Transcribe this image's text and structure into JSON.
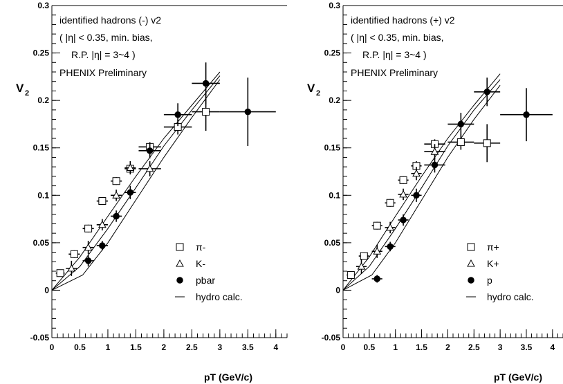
{
  "chart_data": [
    {
      "type": "scatter",
      "xlabel": "pT (GeV/c)",
      "ylabel": "V",
      "ylabel_sub": "2",
      "xlim": [
        0,
        4.2
      ],
      "ylim": [
        -0.05,
        0.3
      ],
      "xticks": [
        "0",
        "0.5",
        "1",
        "1.5",
        "2",
        "2.5",
        "3",
        "3.5",
        "4"
      ],
      "yticks": [
        "-0.05",
        "0",
        "0.05",
        "0.1",
        "0.15",
        "0.2",
        "0.25",
        "0.3"
      ],
      "annotation": [
        "identified hadrons (-) v2",
        "( |η| < 0.35,  min. bias,",
        "R.P. |η| = 3~4 )",
        "PHENIX Preliminary"
      ],
      "legend_placement": "bottom-right",
      "series": [
        {
          "name": "π-",
          "marker": "open-square",
          "points": [
            {
              "x": 0.15,
              "y": 0.018,
              "xerr": 0.08,
              "yerr": 0.003
            },
            {
              "x": 0.4,
              "y": 0.038,
              "xerr": 0.1,
              "yerr": 0.004
            },
            {
              "x": 0.65,
              "y": 0.065,
              "xerr": 0.1,
              "yerr": 0.004
            },
            {
              "x": 0.9,
              "y": 0.094,
              "xerr": 0.1,
              "yerr": 0.004
            },
            {
              "x": 1.15,
              "y": 0.115,
              "xerr": 0.1,
              "yerr": 0.004
            },
            {
              "x": 1.4,
              "y": 0.128,
              "xerr": 0.1,
              "yerr": 0.005
            },
            {
              "x": 1.75,
              "y": 0.151,
              "xerr": 0.2,
              "yerr": 0.005
            },
            {
              "x": 2.25,
              "y": 0.172,
              "xerr": 0.25,
              "yerr": 0.008
            },
            {
              "x": 2.75,
              "y": 0.188,
              "xerr": 0.25,
              "yerr": 0.02
            }
          ]
        },
        {
          "name": "K-",
          "marker": "open-triangle",
          "points": [
            {
              "x": 0.35,
              "y": 0.023,
              "xerr": 0.1,
              "yerr": 0.008
            },
            {
              "x": 0.65,
              "y": 0.045,
              "xerr": 0.1,
              "yerr": 0.007
            },
            {
              "x": 0.9,
              "y": 0.069,
              "xerr": 0.1,
              "yerr": 0.006
            },
            {
              "x": 1.15,
              "y": 0.1,
              "xerr": 0.1,
              "yerr": 0.006
            },
            {
              "x": 1.4,
              "y": 0.129,
              "xerr": 0.1,
              "yerr": 0.007
            },
            {
              "x": 1.75,
              "y": 0.128,
              "xerr": 0.2,
              "yerr": 0.008
            }
          ]
        },
        {
          "name": "pbar",
          "marker": "filled-circle",
          "points": [
            {
              "x": 0.65,
              "y": 0.031,
              "xerr": 0.1,
              "yerr": 0.006
            },
            {
              "x": 0.9,
              "y": 0.047,
              "xerr": 0.1,
              "yerr": 0.005
            },
            {
              "x": 1.15,
              "y": 0.078,
              "xerr": 0.1,
              "yerr": 0.006
            },
            {
              "x": 1.4,
              "y": 0.103,
              "xerr": 0.1,
              "yerr": 0.007
            },
            {
              "x": 1.75,
              "y": 0.147,
              "xerr": 0.2,
              "yerr": 0.008
            },
            {
              "x": 2.25,
              "y": 0.185,
              "xerr": 0.25,
              "yerr": 0.012
            },
            {
              "x": 2.75,
              "y": 0.218,
              "xerr": 0.25,
              "yerr": 0.022
            },
            {
              "x": 3.5,
              "y": 0.188,
              "xerr": 0.5,
              "yerr": 0.036
            }
          ]
        }
      ],
      "hydro_label": "hydro calc.",
      "hydro_curves": [
        {
          "x": [
            0,
            0.5,
            1.0,
            1.5,
            2.0,
            2.5,
            3.0
          ],
          "y": [
            0,
            0.035,
            0.078,
            0.12,
            0.16,
            0.195,
            0.23
          ]
        },
        {
          "x": [
            0,
            0.5,
            1.0,
            1.5,
            2.0,
            2.5,
            3.0
          ],
          "y": [
            0,
            0.025,
            0.065,
            0.108,
            0.152,
            0.19,
            0.226
          ]
        },
        {
          "x": [
            0,
            0.55,
            1.0,
            1.5,
            2.0,
            2.5,
            3.0
          ],
          "y": [
            0,
            0.016,
            0.05,
            0.095,
            0.14,
            0.182,
            0.222
          ]
        }
      ]
    },
    {
      "type": "scatter",
      "xlabel": "pT (GeV/c)",
      "ylabel": "V",
      "ylabel_sub": "2",
      "xlim": [
        0,
        4.2
      ],
      "ylim": [
        -0.05,
        0.3
      ],
      "xticks": [
        "0",
        "0.5",
        "1",
        "1.5",
        "2",
        "2.5",
        "3",
        "3.5",
        "4"
      ],
      "yticks": [
        "-0.05",
        "0",
        "0.05",
        "0.1",
        "0.15",
        "0.2",
        "0.25",
        "0.3"
      ],
      "annotation": [
        "identified hadrons (+) v2",
        "( |η| < 0.35,  min. bias,",
        "R.P. |η| = 3~4 )",
        "PHENIX Preliminary"
      ],
      "legend_placement": "bottom-right",
      "series": [
        {
          "name": "π+",
          "marker": "open-square",
          "points": [
            {
              "x": 0.15,
              "y": 0.016,
              "xerr": 0.08,
              "yerr": 0.003
            },
            {
              "x": 0.4,
              "y": 0.036,
              "xerr": 0.1,
              "yerr": 0.004
            },
            {
              "x": 0.65,
              "y": 0.068,
              "xerr": 0.1,
              "yerr": 0.004
            },
            {
              "x": 0.9,
              "y": 0.092,
              "xerr": 0.1,
              "yerr": 0.004
            },
            {
              "x": 1.15,
              "y": 0.116,
              "xerr": 0.1,
              "yerr": 0.004
            },
            {
              "x": 1.4,
              "y": 0.131,
              "xerr": 0.1,
              "yerr": 0.005
            },
            {
              "x": 1.75,
              "y": 0.154,
              "xerr": 0.2,
              "yerr": 0.005
            },
            {
              "x": 2.25,
              "y": 0.156,
              "xerr": 0.25,
              "yerr": 0.008
            },
            {
              "x": 2.75,
              "y": 0.155,
              "xerr": 0.25,
              "yerr": 0.02
            }
          ]
        },
        {
          "name": "K+",
          "marker": "open-triangle",
          "points": [
            {
              "x": 0.35,
              "y": 0.025,
              "xerr": 0.1,
              "yerr": 0.008
            },
            {
              "x": 0.65,
              "y": 0.041,
              "xerr": 0.1,
              "yerr": 0.007
            },
            {
              "x": 0.9,
              "y": 0.066,
              "xerr": 0.1,
              "yerr": 0.006
            },
            {
              "x": 1.15,
              "y": 0.101,
              "xerr": 0.1,
              "yerr": 0.006
            },
            {
              "x": 1.4,
              "y": 0.123,
              "xerr": 0.1,
              "yerr": 0.007
            },
            {
              "x": 1.75,
              "y": 0.146,
              "xerr": 0.2,
              "yerr": 0.008
            }
          ]
        },
        {
          "name": "p",
          "marker": "filled-circle",
          "points": [
            {
              "x": 0.65,
              "y": 0.012,
              "xerr": 0.1,
              "yerr": 0.004
            },
            {
              "x": 0.9,
              "y": 0.046,
              "xerr": 0.1,
              "yerr": 0.005
            },
            {
              "x": 1.15,
              "y": 0.074,
              "xerr": 0.1,
              "yerr": 0.006
            },
            {
              "x": 1.4,
              "y": 0.1,
              "xerr": 0.1,
              "yerr": 0.007
            },
            {
              "x": 1.75,
              "y": 0.132,
              "xerr": 0.2,
              "yerr": 0.008
            },
            {
              "x": 2.25,
              "y": 0.175,
              "xerr": 0.25,
              "yerr": 0.012
            },
            {
              "x": 2.75,
              "y": 0.209,
              "xerr": 0.25,
              "yerr": 0.015
            },
            {
              "x": 3.5,
              "y": 0.185,
              "xerr": 0.5,
              "yerr": 0.028
            }
          ]
        }
      ],
      "hydro_label": "hydro calc.",
      "hydro_curves": [
        {
          "x": [
            0,
            0.5,
            1.0,
            1.5,
            2.0,
            2.5,
            3.0
          ],
          "y": [
            0,
            0.035,
            0.078,
            0.12,
            0.16,
            0.195,
            0.228
          ]
        },
        {
          "x": [
            0,
            0.5,
            1.0,
            1.5,
            2.0,
            2.5,
            3.0
          ],
          "y": [
            0,
            0.025,
            0.065,
            0.108,
            0.152,
            0.19,
            0.222
          ]
        },
        {
          "x": [
            0,
            0.55,
            1.0,
            1.5,
            2.0,
            2.5,
            3.0
          ],
          "y": [
            0,
            0.016,
            0.05,
            0.095,
            0.14,
            0.18,
            0.216
          ]
        }
      ]
    }
  ]
}
